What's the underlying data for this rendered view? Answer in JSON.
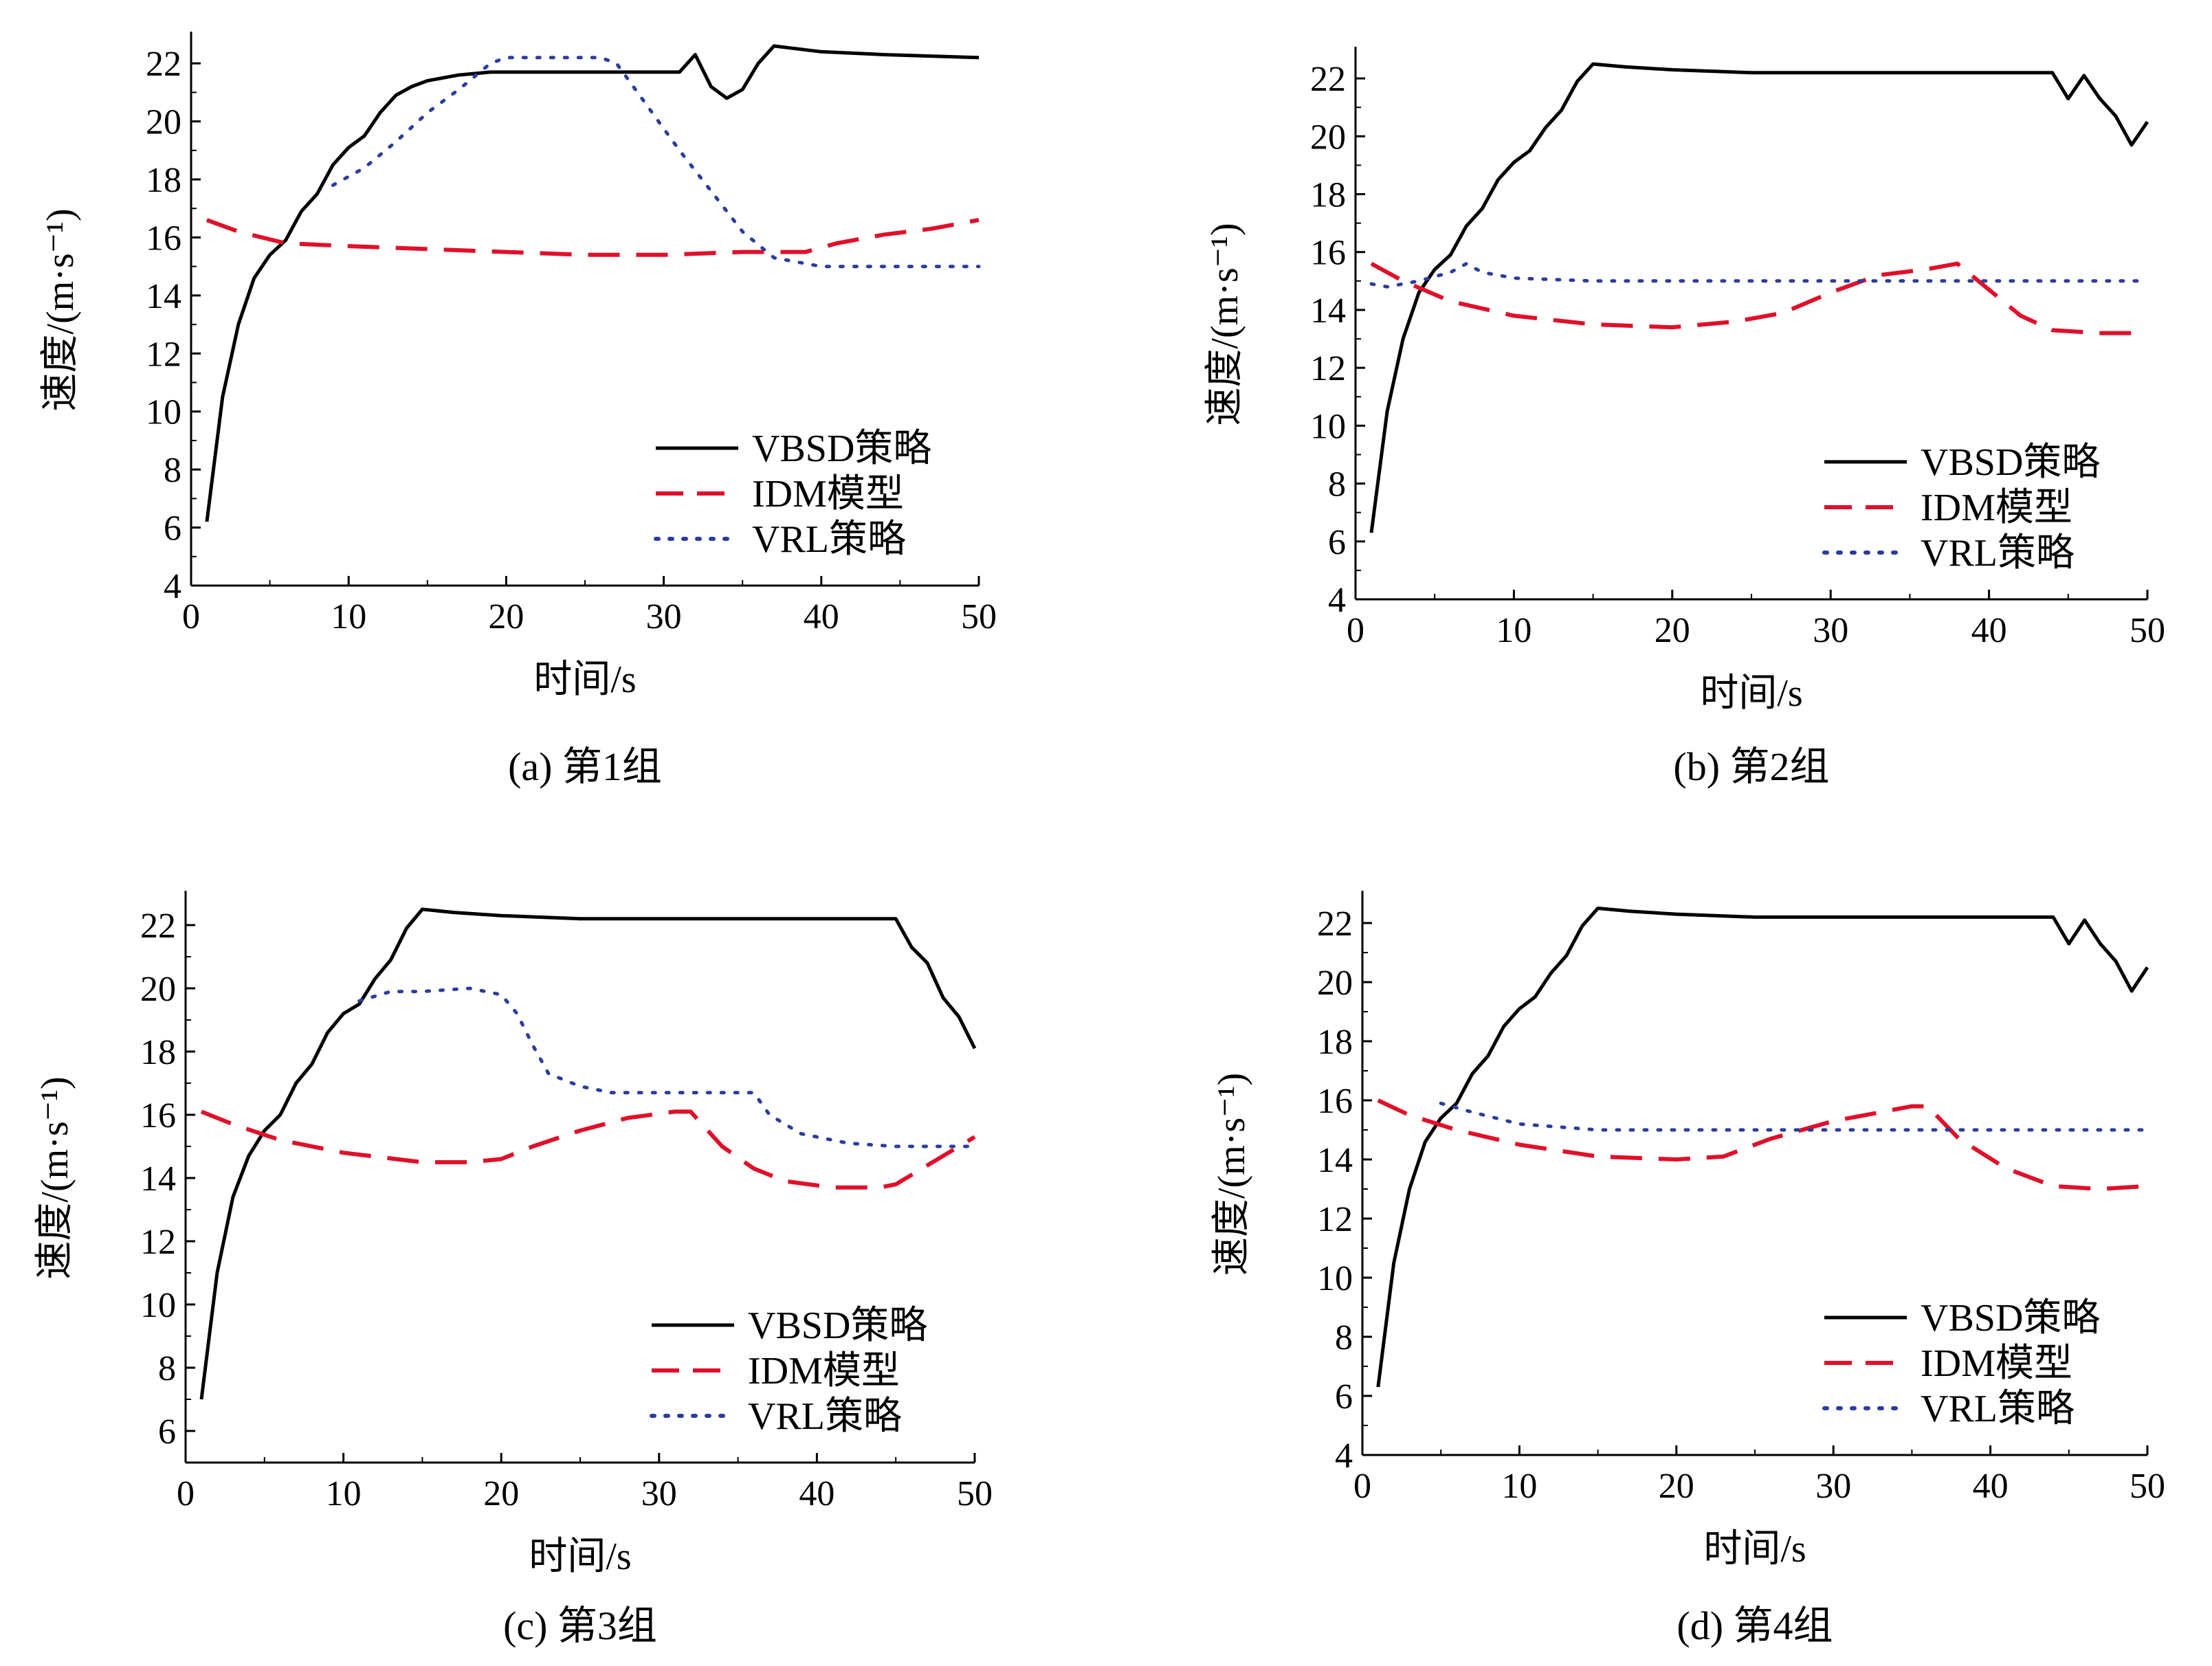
{
  "figure": {
    "styles": {
      "VBSD": {
        "color": "#000000",
        "dash": "solid"
      },
      "IDM": {
        "color": "#e0102a",
        "dash": "dashed"
      },
      "VRL": {
        "color": "#2a3d9c",
        "dash": "dotted"
      }
    }
  },
  "chart_data": [
    {
      "type": "line",
      "caption": "(a) 第1组",
      "xlabel": "时间/s",
      "ylabel": "速度/(m·s⁻¹)",
      "xlim": [
        0,
        50
      ],
      "ylim": [
        4,
        23
      ],
      "xticks": [
        0,
        10,
        20,
        30,
        40,
        50
      ],
      "yticks": [
        4,
        6,
        8,
        10,
        12,
        14,
        16,
        18,
        20,
        22
      ],
      "grid": false,
      "legend_position": "bottom-right",
      "series": [
        {
          "name": "VBSD策略",
          "style": "VBSD",
          "x": [
            1,
            2,
            3,
            4,
            5,
            6,
            7,
            8,
            9,
            10,
            11,
            12,
            13,
            14,
            15,
            17,
            19,
            22,
            25,
            28,
            31,
            32,
            33,
            34,
            35,
            36,
            37,
            40,
            44,
            50
          ],
          "y": [
            6.2,
            10.5,
            13,
            14.6,
            15.4,
            15.9,
            16.9,
            17.5,
            18.5,
            19.1,
            19.5,
            20.3,
            20.9,
            21.2,
            21.4,
            21.6,
            21.7,
            21.7,
            21.7,
            21.7,
            21.7,
            22.3,
            21.2,
            20.8,
            21.1,
            22,
            22.6,
            22.4,
            22.3,
            22.2
          ]
        },
        {
          "name": "IDM模型",
          "style": "IDM",
          "x": [
            1,
            3,
            6,
            10,
            15,
            20,
            25,
            30,
            35,
            39,
            41,
            44,
            47,
            50
          ],
          "y": [
            16.6,
            16.2,
            15.8,
            15.7,
            15.6,
            15.5,
            15.4,
            15.4,
            15.5,
            15.5,
            15.8,
            16.1,
            16.3,
            16.6
          ]
        },
        {
          "name": "VRL策略",
          "style": "VRL",
          "x": [
            9,
            11,
            13,
            15,
            17,
            19,
            20,
            23,
            26,
            27,
            29,
            31,
            33,
            35,
            37,
            40,
            45,
            50
          ],
          "y": [
            17.8,
            18.4,
            19.3,
            20.3,
            21.1,
            22,
            22.2,
            22.2,
            22.2,
            22,
            20.5,
            19,
            17.6,
            16.2,
            15.3,
            15,
            15,
            15
          ]
        }
      ]
    },
    {
      "type": "line",
      "caption": "(b) 第2组",
      "xlabel": "时间/s",
      "ylabel": "速度/(m·s⁻¹)",
      "xlim": [
        0,
        50
      ],
      "ylim": [
        4,
        23
      ],
      "xticks": [
        0,
        10,
        20,
        30,
        40,
        50
      ],
      "yticks": [
        4,
        6,
        8,
        10,
        12,
        14,
        16,
        18,
        20,
        22
      ],
      "grid": false,
      "legend_position": "bottom-right",
      "series": [
        {
          "name": "VBSD策略",
          "style": "VBSD",
          "x": [
            1,
            2,
            3,
            4,
            5,
            6,
            7,
            8,
            9,
            10,
            11,
            12,
            13,
            14,
            15,
            17,
            20,
            25,
            30,
            35,
            40,
            44,
            45,
            46,
            47,
            48,
            49,
            50
          ],
          "y": [
            6.3,
            10.5,
            13,
            14.6,
            15.4,
            15.9,
            16.9,
            17.5,
            18.5,
            19.1,
            19.5,
            20.3,
            20.9,
            21.9,
            22.5,
            22.4,
            22.3,
            22.2,
            22.2,
            22.2,
            22.2,
            22.2,
            21.3,
            22.1,
            21.3,
            20.7,
            19.7,
            20.5
          ]
        },
        {
          "name": "IDM模型",
          "style": "IDM",
          "x": [
            1,
            3,
            6,
            10,
            15,
            20,
            24,
            27,
            30,
            33,
            36,
            38,
            40,
            42,
            44,
            47,
            50
          ],
          "y": [
            15.6,
            15,
            14.3,
            13.8,
            13.5,
            13.4,
            13.6,
            13.9,
            14.6,
            15.2,
            15.4,
            15.6,
            14.7,
            13.8,
            13.3,
            13.2,
            13.2
          ]
        },
        {
          "name": "VRL策略",
          "style": "VRL",
          "x": [
            1,
            2,
            4,
            6,
            7,
            8,
            10,
            15,
            20,
            30,
            40,
            50
          ],
          "y": [
            14.9,
            14.8,
            15,
            15.3,
            15.6,
            15.3,
            15.1,
            15,
            15,
            15,
            15,
            15
          ]
        }
      ]
    },
    {
      "type": "line",
      "caption": "(c) 第3组",
      "xlabel": "时间/s",
      "ylabel": "速度/(m·s⁻¹)",
      "xlim": [
        0,
        50
      ],
      "ylim": [
        5,
        23
      ],
      "xticks": [
        0,
        10,
        20,
        30,
        40,
        50
      ],
      "yticks": [
        6,
        8,
        10,
        12,
        14,
        16,
        18,
        20,
        22
      ],
      "grid": false,
      "legend_position": "bottom-right",
      "series": [
        {
          "name": "VBSD策略",
          "style": "VBSD",
          "x": [
            1,
            2,
            3,
            4,
            5,
            6,
            7,
            8,
            9,
            10,
            11,
            12,
            13,
            14,
            15,
            17,
            20,
            25,
            30,
            35,
            40,
            45,
            46,
            47,
            48,
            49,
            50
          ],
          "y": [
            7,
            11,
            13.4,
            14.7,
            15.5,
            16,
            17,
            17.6,
            18.6,
            19.2,
            19.5,
            20.3,
            20.9,
            21.9,
            22.5,
            22.4,
            22.3,
            22.2,
            22.2,
            22.2,
            22.2,
            22.2,
            21.3,
            20.8,
            19.7,
            19.1,
            18.1
          ]
        },
        {
          "name": "IDM模型",
          "style": "IDM",
          "x": [
            1,
            3,
            6,
            10,
            15,
            18,
            20,
            22,
            25,
            28,
            31,
            32,
            34,
            36,
            38,
            41,
            44,
            45,
            47,
            50
          ],
          "y": [
            16.1,
            15.7,
            15.2,
            14.8,
            14.5,
            14.5,
            14.6,
            15,
            15.5,
            15.9,
            16.1,
            16.1,
            15,
            14.3,
            13.9,
            13.7,
            13.7,
            13.8,
            14.4,
            15.3
          ]
        },
        {
          "name": "VRL策略",
          "style": "VRL",
          "x": [
            11,
            13,
            15,
            18,
            20,
            21,
            22,
            23,
            25,
            27,
            30,
            33,
            36,
            37,
            39,
            42,
            45,
            48,
            50
          ],
          "y": [
            19.6,
            19.9,
            19.9,
            20,
            19.8,
            19.2,
            18.2,
            17.3,
            16.9,
            16.7,
            16.7,
            16.7,
            16.7,
            16,
            15.4,
            15.1,
            15,
            15,
            15
          ]
        }
      ]
    },
    {
      "type": "line",
      "caption": "(d) 第4组",
      "xlabel": "时间/s",
      "ylabel": "速度/(m·s⁻¹)",
      "xlim": [
        0,
        50
      ],
      "ylim": [
        4,
        23
      ],
      "xticks": [
        0,
        10,
        20,
        30,
        40,
        50
      ],
      "yticks": [
        4,
        6,
        8,
        10,
        12,
        14,
        16,
        18,
        20,
        22
      ],
      "grid": false,
      "legend_position": "bottom-right",
      "series": [
        {
          "name": "VBSD策略",
          "style": "VBSD",
          "x": [
            1,
            2,
            3,
            4,
            5,
            6,
            7,
            8,
            9,
            10,
            11,
            12,
            13,
            14,
            15,
            17,
            20,
            25,
            30,
            35,
            40,
            44,
            45,
            46,
            47,
            48,
            49,
            50
          ],
          "y": [
            6.3,
            10.5,
            13,
            14.6,
            15.4,
            15.9,
            16.9,
            17.5,
            18.5,
            19.1,
            19.5,
            20.3,
            20.9,
            21.9,
            22.5,
            22.4,
            22.3,
            22.2,
            22.2,
            22.2,
            22.2,
            22.2,
            21.3,
            22.1,
            21.3,
            20.7,
            19.7,
            20.5
          ]
        },
        {
          "name": "IDM模型",
          "style": "IDM",
          "x": [
            1,
            3,
            6,
            10,
            15,
            20,
            23,
            26,
            30,
            33,
            35,
            36,
            38,
            41,
            44,
            47,
            50
          ],
          "y": [
            16,
            15.5,
            15,
            14.5,
            14.1,
            14,
            14.1,
            14.7,
            15.3,
            15.6,
            15.8,
            15.8,
            14.7,
            13.7,
            13.1,
            13,
            13.1
          ]
        },
        {
          "name": "VRL策略",
          "style": "VRL",
          "x": [
            5,
            7,
            10,
            15,
            20,
            30,
            40,
            50
          ],
          "y": [
            15.9,
            15.6,
            15.2,
            15,
            15,
            15,
            15,
            15
          ]
        }
      ]
    }
  ]
}
